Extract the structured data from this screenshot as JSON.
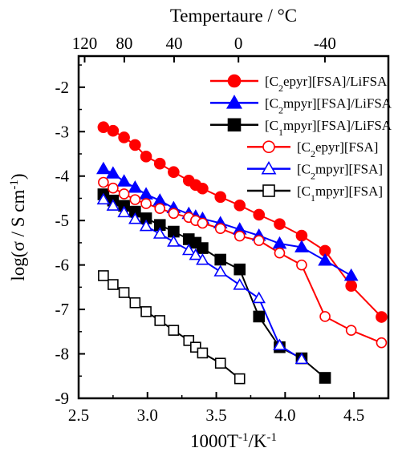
{
  "chart_data": {
    "type": "scatter",
    "xlabel": "1000T",
    "xlabel_sup": "-1",
    "xlabel_unit": "/K",
    "xlabel_unit_sup": "-1",
    "ylabel": "log(σ / S cm",
    "ylabel_sup": "-1",
    "ylabel_close": ")",
    "top_axis_label": "Tempertaure / °C",
    "xlim": [
      2.5,
      4.75
    ],
    "ylim": [
      -9,
      -1.3
    ],
    "x_ticks": [
      2.5,
      3.0,
      3.5,
      4.0,
      4.5
    ],
    "x_tick_labels": [
      "2.5",
      "3.0",
      "3.5",
      "4.0",
      "4.5"
    ],
    "y_ticks": [
      -9,
      -8,
      -7,
      -6,
      -5,
      -4,
      -3,
      -2
    ],
    "y_tick_labels": [
      "-9",
      "-8",
      "-7",
      "-6",
      "-5",
      "-4",
      "-3",
      "-2"
    ],
    "top_ticks_celsius": [
      120,
      80,
      40,
      0,
      -40
    ],
    "top_tick_labels": [
      "120",
      "80",
      "40",
      "0",
      "-40"
    ],
    "legend_position": "top-right",
    "series": [
      {
        "name": "[C2epyr][FSA]/LiFSA",
        "label_parts": [
          "[C",
          "2",
          "epyr][FSA]/LiFSA"
        ],
        "color": "#ff0000",
        "marker": "circle",
        "filled": true,
        "x": [
          2.68,
          2.75,
          2.83,
          2.91,
          2.99,
          3.09,
          3.19,
          3.3,
          3.35,
          3.4,
          3.53,
          3.67,
          3.81,
          3.96,
          4.12,
          4.29,
          4.48,
          4.7
        ],
        "y": [
          -2.9,
          -2.98,
          -3.13,
          -3.3,
          -3.56,
          -3.72,
          -3.91,
          -4.1,
          -4.2,
          -4.28,
          -4.47,
          -4.66,
          -4.87,
          -5.08,
          -5.34,
          -5.68,
          -6.47,
          -7.17
        ]
      },
      {
        "name": "[C2mpyr][FSA]/LiFSA",
        "label_parts": [
          "[C",
          "2",
          "mpyr][FSA]/LiFSA"
        ],
        "color": "#0000ff",
        "marker": "triangle",
        "filled": true,
        "x": [
          2.68,
          2.75,
          2.83,
          2.91,
          2.99,
          3.09,
          3.19,
          3.3,
          3.35,
          3.4,
          3.53,
          3.67,
          3.81,
          3.96,
          4.12,
          4.29,
          4.48
        ],
        "y": [
          -3.84,
          -3.94,
          -4.12,
          -4.26,
          -4.41,
          -4.55,
          -4.72,
          -4.85,
          -4.91,
          -4.96,
          -5.06,
          -5.2,
          -5.34,
          -5.52,
          -5.6,
          -5.9,
          -6.24
        ]
      },
      {
        "name": "[C1mpyr][FSA]/LiFSA",
        "label_parts": [
          "[C",
          "1",
          "mpyr][FSA]/LiFSA"
        ],
        "color": "#000000",
        "marker": "square",
        "filled": true,
        "x": [
          2.68,
          2.75,
          2.83,
          2.91,
          2.99,
          3.09,
          3.19,
          3.3,
          3.35,
          3.4,
          3.53,
          3.67,
          3.81,
          3.96,
          4.12,
          4.29
        ],
        "y": [
          -4.41,
          -4.55,
          -4.67,
          -4.8,
          -4.95,
          -5.1,
          -5.25,
          -5.42,
          -5.5,
          -5.62,
          -5.88,
          -6.1,
          -7.16,
          -7.85,
          -8.1,
          -8.54
        ]
      },
      {
        "name": "[C2epyr][FSA]",
        "label_parts": [
          "[C",
          "2",
          "epyr][FSA]"
        ],
        "color": "#ff0000",
        "marker": "circle",
        "filled": false,
        "x": [
          2.68,
          2.75,
          2.83,
          2.91,
          2.99,
          3.09,
          3.19,
          3.3,
          3.35,
          3.4,
          3.53,
          3.67,
          3.81,
          3.96,
          4.12,
          4.29,
          4.48,
          4.7
        ],
        "y": [
          -4.14,
          -4.27,
          -4.4,
          -4.53,
          -4.62,
          -4.73,
          -4.84,
          -4.93,
          -5.0,
          -5.06,
          -5.18,
          -5.35,
          -5.45,
          -5.73,
          -6.0,
          -7.16,
          -7.47,
          -7.75
        ]
      },
      {
        "name": "[C2mpyr][FSA]",
        "label_parts": [
          "[C",
          "2",
          "mpyr][FSA]"
        ],
        "color": "#0000ff",
        "marker": "triangle",
        "filled": false,
        "x": [
          2.68,
          2.75,
          2.83,
          2.91,
          2.99,
          3.09,
          3.19,
          3.3,
          3.35,
          3.4,
          3.53,
          3.67,
          3.81,
          3.96,
          4.12
        ],
        "y": [
          -4.53,
          -4.67,
          -4.82,
          -4.97,
          -5.13,
          -5.3,
          -5.48,
          -5.67,
          -5.78,
          -5.89,
          -6.15,
          -6.45,
          -6.75,
          -7.81,
          -8.12
        ]
      },
      {
        "name": "[C1mpyr][FSA]",
        "label_parts": [
          "[C",
          "1",
          "mpyr][FSA]"
        ],
        "color": "#000000",
        "marker": "square",
        "filled": false,
        "x": [
          2.68,
          2.75,
          2.83,
          2.91,
          2.99,
          3.09,
          3.19,
          3.3,
          3.35,
          3.4,
          3.53,
          3.67
        ],
        "y": [
          -6.24,
          -6.44,
          -6.62,
          -6.85,
          -7.05,
          -7.25,
          -7.47,
          -7.7,
          -7.85,
          -7.98,
          -8.21,
          -8.56
        ]
      }
    ]
  }
}
